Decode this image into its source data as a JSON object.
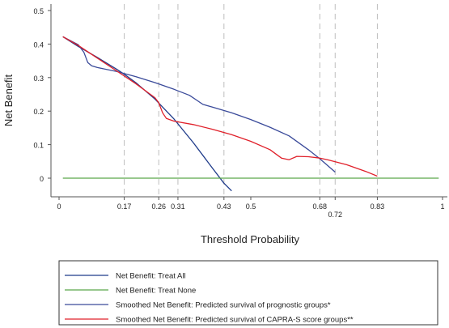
{
  "chart_data": {
    "type": "line",
    "title": "",
    "xlabel": "Threshold Probability",
    "ylabel": "Net Benefit",
    "xlim": [
      0,
      1
    ],
    "ylim": [
      -0.04,
      0.5
    ],
    "x_ticks": [
      {
        "value": 0,
        "label": "0"
      },
      {
        "value": 0.17,
        "label": "0.17"
      },
      {
        "value": 0.26,
        "label": "0.26"
      },
      {
        "value": 0.31,
        "label": "0.31"
      },
      {
        "value": 0.43,
        "label": "0.43"
      },
      {
        "value": 0.5,
        "label": "0.5"
      },
      {
        "value": 0.68,
        "label": "0.68"
      },
      {
        "value": 0.72,
        "label": "0.72",
        "offset": "below"
      },
      {
        "value": 0.83,
        "label": "0.83"
      },
      {
        "value": 1,
        "label": "1"
      }
    ],
    "y_ticks": [
      {
        "value": 0,
        "label": "0"
      },
      {
        "value": 0.1,
        "label": "0.1"
      },
      {
        "value": 0.2,
        "label": "0.2"
      },
      {
        "value": 0.3,
        "label": "0.3"
      },
      {
        "value": 0.4,
        "label": "0.4"
      },
      {
        "value": 0.5,
        "label": "0.5"
      }
    ],
    "vertical_reference_lines": [
      0.17,
      0.26,
      0.31,
      0.43,
      0.68,
      0.72,
      0.83
    ],
    "grid": false,
    "legend_position": "bottom",
    "series": [
      {
        "name": "Net Benefit: Treat All",
        "color": "#1f3b8a",
        "x": [
          0.01,
          0.05,
          0.1,
          0.15,
          0.17,
          0.2,
          0.25,
          0.3,
          0.35,
          0.4,
          0.43,
          0.45
        ],
        "y": [
          0.422,
          0.393,
          0.36,
          0.325,
          0.31,
          0.285,
          0.236,
          0.176,
          0.106,
          0.03,
          -0.015,
          -0.038
        ]
      },
      {
        "name": "Net Benefit: Treat None",
        "color": "#5aa84a",
        "x": [
          0.01,
          0.99
        ],
        "y": [
          0,
          0
        ]
      },
      {
        "name": "Smoothed Net Benefit: Predicted survival of prognostic groups*",
        "color": "#3a4a9a",
        "x": [
          0.01,
          0.05,
          0.065,
          0.075,
          0.085,
          0.1,
          0.15,
          0.2,
          0.25,
          0.3,
          0.34,
          0.36,
          0.375,
          0.4,
          0.45,
          0.5,
          0.55,
          0.6,
          0.65,
          0.68,
          0.7,
          0.72
        ],
        "y": [
          0.422,
          0.398,
          0.375,
          0.345,
          0.335,
          0.33,
          0.318,
          0.303,
          0.285,
          0.265,
          0.247,
          0.232,
          0.22,
          0.212,
          0.195,
          0.175,
          0.152,
          0.126,
          0.085,
          0.058,
          0.038,
          0.018
        ]
      },
      {
        "name": "Smoothed Net Benefit: Predicted survival of CAPRA-S score groups**",
        "color": "#e0202a",
        "x": [
          0.01,
          0.05,
          0.1,
          0.15,
          0.2,
          0.25,
          0.26,
          0.27,
          0.28,
          0.3,
          0.35,
          0.4,
          0.45,
          0.5,
          0.55,
          0.58,
          0.6,
          0.62,
          0.65,
          0.68,
          0.7,
          0.75,
          0.8,
          0.83
        ],
        "y": [
          0.422,
          0.396,
          0.358,
          0.32,
          0.282,
          0.24,
          0.225,
          0.195,
          0.178,
          0.17,
          0.16,
          0.146,
          0.13,
          0.11,
          0.085,
          0.06,
          0.055,
          0.065,
          0.064,
          0.06,
          0.055,
          0.04,
          0.02,
          0.006
        ]
      }
    ]
  }
}
